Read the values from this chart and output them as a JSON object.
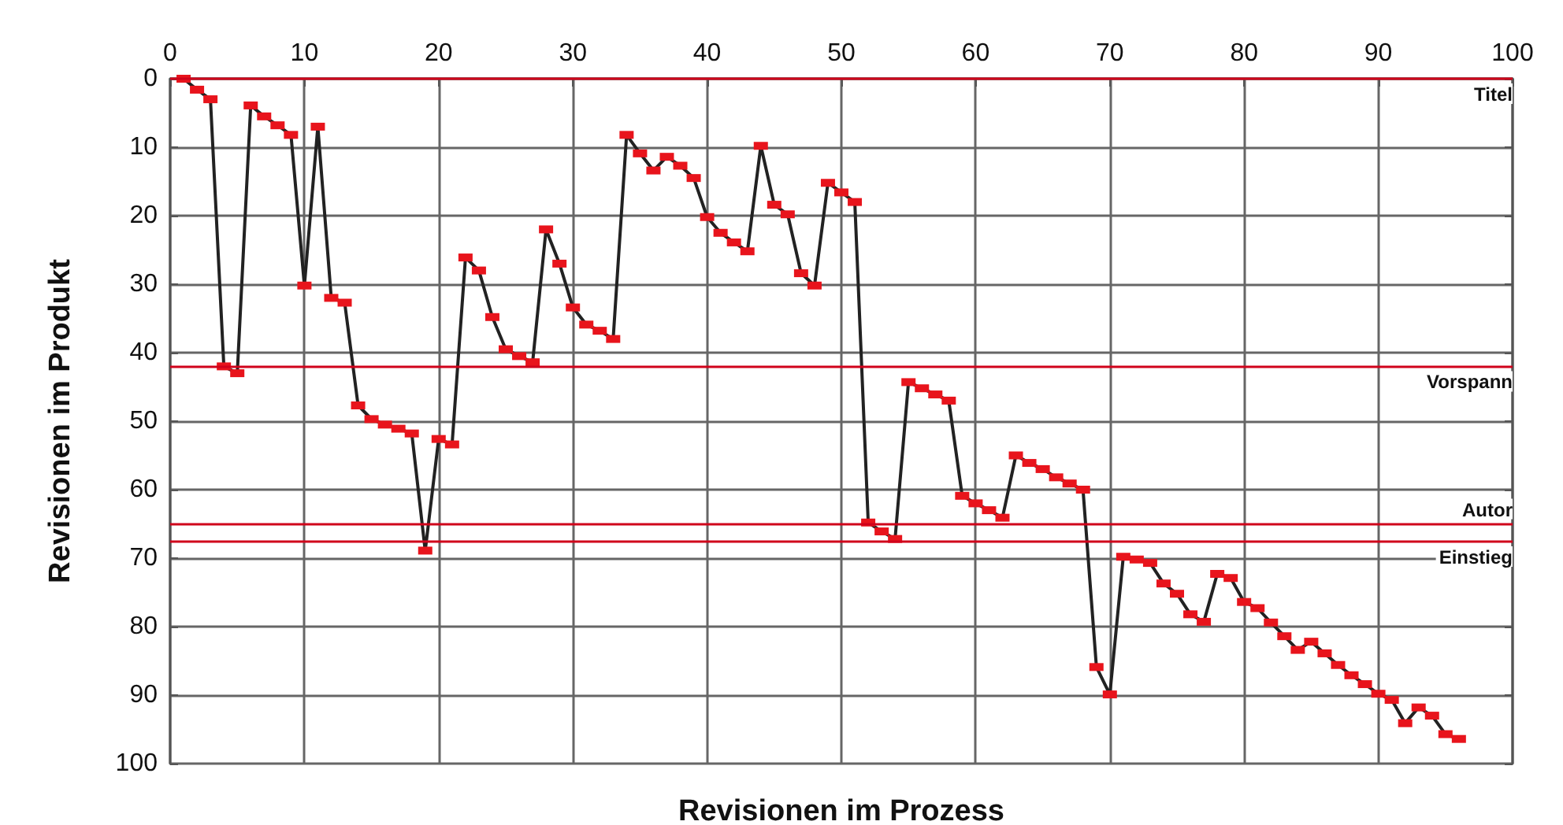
{
  "chart_data": {
    "type": "line",
    "xlabel": "Revisionen im Prozess",
    "ylabel": "Revisionen im Produkt",
    "xlim": [
      0,
      100
    ],
    "xticks": [
      0,
      10,
      20,
      30,
      40,
      50,
      60,
      70,
      80,
      90,
      100
    ],
    "ylim": [
      100,
      0
    ],
    "yticks": [
      0,
      10,
      20,
      30,
      40,
      50,
      60,
      70,
      80,
      90,
      100
    ],
    "grid": true,
    "marker": "square",
    "line_style": "solid",
    "x": [
      1,
      2,
      3,
      4,
      5,
      6,
      7,
      8,
      9,
      10,
      11,
      12,
      13,
      14,
      15,
      16,
      17,
      18,
      19,
      20,
      21,
      22,
      23,
      24,
      25,
      26,
      27,
      28,
      29,
      30,
      31,
      32,
      33,
      34,
      35,
      36,
      37,
      38,
      39,
      40,
      41,
      42,
      43,
      44,
      45,
      46,
      47,
      48,
      49,
      50,
      51,
      52,
      53,
      54,
      55,
      56,
      57,
      58,
      59,
      60,
      61,
      62,
      63,
      64,
      65,
      66,
      67,
      68,
      69,
      70,
      71,
      72,
      73,
      74,
      75,
      76,
      77,
      78,
      79,
      80,
      81,
      82,
      83,
      84,
      85,
      86,
      87,
      88,
      89,
      90,
      91,
      92,
      93,
      94,
      95,
      96
    ],
    "series": [
      {
        "color": "#e8141c",
        "values": [
          0,
          1.6,
          3,
          42,
          43,
          3.9,
          5.5,
          6.8,
          8.2,
          30.2,
          7,
          32,
          32.7,
          47.7,
          49.7,
          50.5,
          51.1,
          51.8,
          68.9,
          52.6,
          53.4,
          26.1,
          28,
          34.8,
          39.5,
          40.5,
          41.4,
          22,
          27,
          33.4,
          35.9,
          36.8,
          38,
          8.2,
          10.9,
          13.4,
          11.4,
          12.7,
          14.5,
          20.2,
          22.5,
          23.9,
          25.2,
          9.8,
          18.4,
          19.8,
          28.4,
          30.2,
          15.2,
          16.6,
          18,
          64.8,
          66.1,
          67.2,
          44.3,
          45.2,
          46.1,
          47,
          60.9,
          62,
          63,
          64.1,
          55,
          56.1,
          57,
          58.2,
          59.1,
          60,
          85.9,
          89.9,
          69.8,
          70.2,
          70.7,
          73.7,
          75.2,
          78.2,
          79.3,
          72.3,
          72.9,
          76.4,
          77.3,
          79.4,
          81.4,
          83.4,
          82.2,
          83.9,
          85.6,
          87.1,
          88.4,
          89.8,
          90.7,
          94.1,
          91.8,
          93,
          95.7,
          96.4
        ]
      }
    ],
    "ref_lines": [
      {
        "axis": "y",
        "value": 0,
        "label": "Titel",
        "color": "#d0021b"
      },
      {
        "axis": "y",
        "value": 42,
        "label": "Vorspann",
        "color": "#d0021b"
      },
      {
        "axis": "y",
        "value": 65,
        "label": "Autor",
        "color": "#d0021b"
      },
      {
        "axis": "y",
        "value": 67.6,
        "label": "Einstieg",
        "color": "#d0021b"
      }
    ]
  }
}
